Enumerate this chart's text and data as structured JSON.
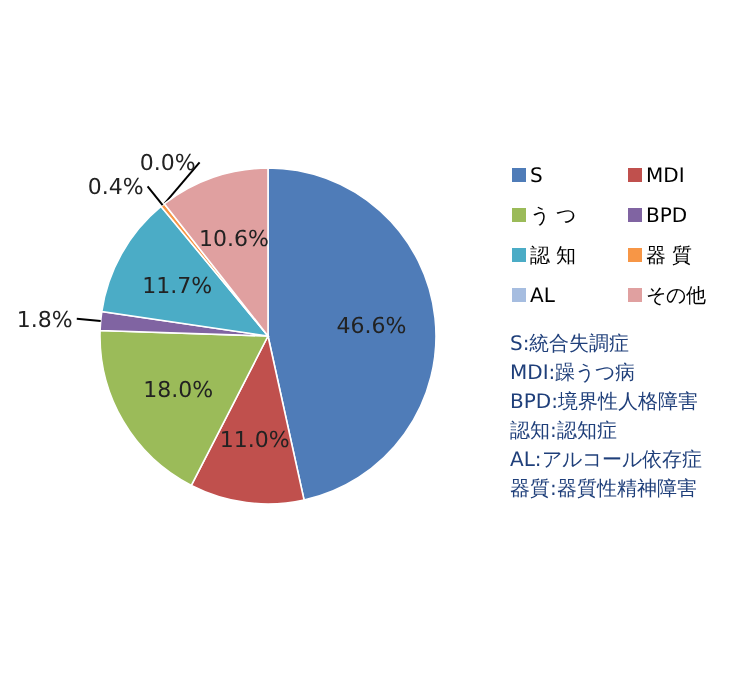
{
  "chart_data": {
    "type": "pie",
    "categories": [
      "S",
      "MDI",
      "う つ",
      "BPD",
      "認 知",
      "器 質",
      "AL",
      "その他"
    ],
    "values": [
      46.6,
      11.0,
      18.0,
      1.8,
      11.7,
      0.4,
      0.0,
      10.6
    ],
    "value_labels": [
      "46.6%",
      "11.0%",
      "18.0%",
      "1.8%",
      "11.7%",
      "0.4%",
      "0.0%",
      "10.6%"
    ],
    "colors": [
      "#4f7cb8",
      "#c0504d",
      "#9bbb59",
      "#8064a2",
      "#4bacc6",
      "#f79646",
      "#a6bde0",
      "#e0a0a0"
    ],
    "legend": "right",
    "annotations": [
      "S:統合失調症",
      "MDI:躁うつ病",
      "BPD:境界性人格障害",
      "認知:認知症",
      "AL:アルコール依存症",
      "器質:器質性精神障害"
    ]
  }
}
